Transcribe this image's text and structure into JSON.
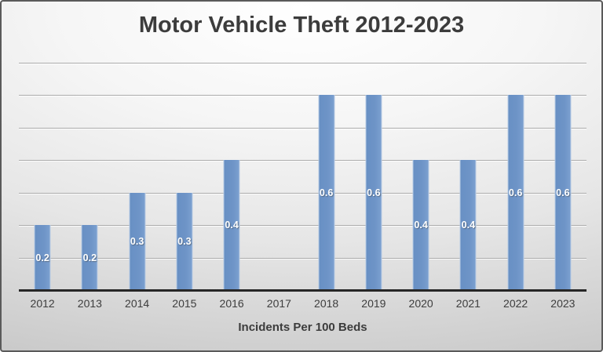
{
  "chart_data": {
    "type": "bar",
    "title": "Motor Vehicle Theft 2012-2023",
    "xlabel": "Incidents Per 100 Beds",
    "ylabel": "",
    "categories": [
      "2012",
      "2013",
      "2014",
      "2015",
      "2016",
      "2017",
      "2018",
      "2019",
      "2020",
      "2021",
      "2022",
      "2023"
    ],
    "values": [
      0.2,
      0.2,
      0.3,
      0.3,
      0.4,
      0,
      0.6,
      0.6,
      0.4,
      0.4,
      0.6,
      0.6
    ],
    "data_labels": [
      "0.2",
      "0.2",
      "0.3",
      "0.3",
      "0.4",
      "",
      "0.6",
      "0.6",
      "0.4",
      "0.4",
      "0.6",
      "0.6"
    ],
    "ylim": [
      0,
      0.7
    ],
    "gridline_interval": 0.1,
    "grid": true,
    "legend": false,
    "y_tick_labels_visible": false,
    "data_label_position": "center",
    "colors": {
      "bar_fill": "#6e94c7",
      "bar_edge_highlight": "#ffffff",
      "gridline": "#ababab",
      "axis_line": "#262626",
      "title_text": "#3c3c3c",
      "tick_text": "#3d3d3d",
      "data_label_text": "#ffffff",
      "slide_border": "#5a5a5a",
      "background_top": "#ffffff",
      "background_bottom": "#c3c3c3"
    }
  }
}
